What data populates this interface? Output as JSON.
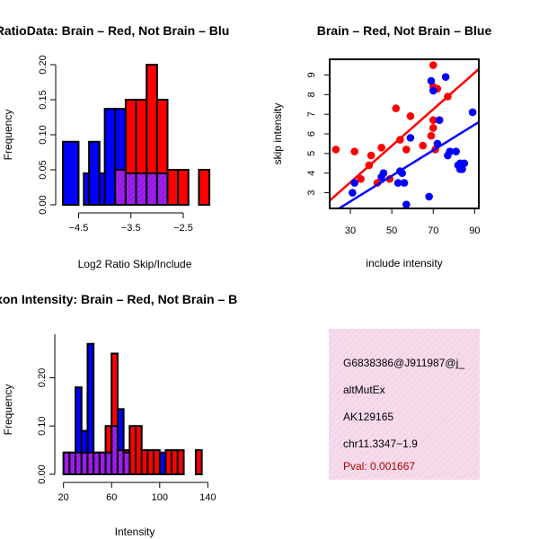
{
  "colors": {
    "red": "#ff0000",
    "blue": "#0000ff",
    "purple": "#a020f0",
    "pink_bg": "#f4d7ea"
  },
  "chart_data": [
    {
      "type": "bar",
      "title": "RatioData: Brain – Red, Not Brain – Blu",
      "xlabel": "Log2 Ratio Skip/Include",
      "ylabel": "Frequency",
      "xlim": [
        -4.8,
        -1.95
      ],
      "ylim": [
        0,
        0.2
      ],
      "xticks": [
        {
          "v": -4.5,
          "label": "−4.5"
        },
        {
          "v": -3.5,
          "label": "−3.5"
        },
        {
          "v": -2.5,
          "label": "−2.5"
        }
      ],
      "yticks": [
        {
          "v": 0,
          "label": "0.00"
        },
        {
          "v": 0.05,
          "label": "0.05"
        },
        {
          "v": 0.1,
          "label": "0.10"
        },
        {
          "v": 0.15,
          "label": "0.15"
        },
        {
          "v": 0.2,
          "label": "0.20"
        }
      ],
      "series": [
        {
          "name": "Not Brain",
          "color": "blue",
          "bins": [
            [
              -4.8,
              -4.5,
              0.09
            ],
            [
              -4.5,
              -4.4,
              0
            ],
            [
              -4.4,
              -4.2,
              0.045
            ],
            [
              -4.3,
              -4.1,
              0.09
            ],
            [
              -4.1,
              -3.9,
              0.045
            ],
            [
              -4.0,
              -3.8,
              0.137
            ],
            [
              -3.8,
              -3.6,
              0.137
            ],
            [
              -3.6,
              -3.4,
              0.045
            ],
            [
              -3.4,
              -3.2,
              0.09
            ],
            [
              -3.2,
              -3.0,
              0.09
            ],
            [
              -3.0,
              -2.8,
              0.045
            ]
          ]
        },
        {
          "name": "Brain",
          "color": "red",
          "bins": [
            [
              -3.8,
              -3.6,
              0.05
            ],
            [
              -3.6,
              -3.4,
              0.15
            ],
            [
              -3.4,
              -3.2,
              0.15
            ],
            [
              -3.2,
              -3.0,
              0.2
            ],
            [
              -3.0,
              -2.8,
              0.15
            ],
            [
              -2.8,
              -2.6,
              0.05
            ],
            [
              -2.6,
              -2.4,
              0.05
            ],
            [
              -2.2,
              -2.0,
              0.05
            ]
          ]
        },
        {
          "name": "Overlap",
          "color": "purple",
          "bins": [
            [
              -3.8,
              -3.6,
              0.05
            ],
            [
              -3.6,
              -3.4,
              0.045
            ],
            [
              -3.4,
              -3.2,
              0.045
            ],
            [
              -3.2,
              -3.0,
              0.045
            ],
            [
              -3.0,
              -2.8,
              0.045
            ]
          ]
        }
      ]
    },
    {
      "type": "scatter",
      "title": "Brain – Red, Not Brain – Blue",
      "xlabel": "include intensity",
      "ylabel": "skip intensity",
      "xlim": [
        20,
        92
      ],
      "ylim": [
        2.2,
        9.8
      ],
      "xticks": [
        {
          "v": 30,
          "label": "30"
        },
        {
          "v": 50,
          "label": "50"
        },
        {
          "v": 70,
          "label": "70"
        },
        {
          "v": 90,
          "label": "90"
        }
      ],
      "yticks": [
        {
          "v": 3,
          "label": "3"
        },
        {
          "v": 4,
          "label": "4"
        },
        {
          "v": 5,
          "label": "5"
        },
        {
          "v": 6,
          "label": "6"
        },
        {
          "v": 7,
          "label": "7"
        },
        {
          "v": 8,
          "label": "8"
        },
        {
          "v": 9,
          "label": "9"
        }
      ],
      "series": [
        {
          "name": "Brain",
          "color": "red",
          "points": [
            [
              23,
              5.2
            ],
            [
              32,
              5.1
            ],
            [
              35,
              3.7
            ],
            [
              39,
              4.4
            ],
            [
              40,
              4.9
            ],
            [
              43,
              3.5
            ],
            [
              45,
              5.3
            ],
            [
              49,
              3.7
            ],
            [
              52,
              7.3
            ],
            [
              54,
              5.7
            ],
            [
              57,
              5.2
            ],
            [
              59,
              6.9
            ],
            [
              65,
              5.4
            ],
            [
              69,
              5.9
            ],
            [
              70,
              6.3
            ],
            [
              70,
              6.7
            ],
            [
              70,
              8.4
            ],
            [
              70,
              9.5
            ],
            [
              71,
              5.2
            ],
            [
              72,
              8.3
            ],
            [
              77,
              7.9
            ]
          ],
          "fit": [
            [
              20,
              2.6
            ],
            [
              92,
              9.3
            ]
          ]
        },
        {
          "name": "Not Brain",
          "color": "blue",
          "points": [
            [
              31,
              3.0
            ],
            [
              32,
              3.5
            ],
            [
              45,
              3.8
            ],
            [
              46,
              4.0
            ],
            [
              53,
              3.5
            ],
            [
              54,
              4.1
            ],
            [
              55,
              4.0
            ],
            [
              56,
              3.5
            ],
            [
              57,
              2.4
            ],
            [
              59,
              5.8
            ],
            [
              68,
              2.8
            ],
            [
              69,
              8.7
            ],
            [
              70,
              8.2
            ],
            [
              72,
              5.5
            ],
            [
              73,
              6.7
            ],
            [
              76,
              8.9
            ],
            [
              77,
              4.9
            ],
            [
              78,
              5.1
            ],
            [
              81,
              5.1
            ],
            [
              82,
              4.4
            ],
            [
              83,
              4.5
            ],
            [
              83,
              4.2
            ],
            [
              84,
              4.2
            ],
            [
              85,
              4.5
            ],
            [
              89,
              7.1
            ]
          ],
          "fit": [
            [
              23,
              2.1
            ],
            [
              92,
              6.6
            ]
          ]
        }
      ]
    },
    {
      "type": "bar",
      "title": "Exon Intensity: Brain – Red, Not Brain – B",
      "xlabel": "Intensity",
      "ylabel": "Frequency",
      "xlim": [
        18,
        142
      ],
      "ylim": [
        0,
        0.29
      ],
      "xticks": [
        {
          "v": 20,
          "label": "20"
        },
        {
          "v": 60,
          "label": "60"
        },
        {
          "v": 100,
          "label": "100"
        },
        {
          "v": 140,
          "label": "140"
        }
      ],
      "yticks": [
        {
          "v": 0,
          "label": "0.00"
        },
        {
          "v": 0.1,
          "label": "0.10"
        },
        {
          "v": 0.2,
          "label": "0.20"
        }
      ],
      "series": [
        {
          "name": "Not Brain",
          "color": "blue",
          "bins": [
            [
              20,
              25,
              0.045
            ],
            [
              25,
              30,
              0.045
            ],
            [
              30,
              35,
              0.18
            ],
            [
              35,
              40,
              0.09
            ],
            [
              40,
              45,
              0.27
            ],
            [
              45,
              50,
              0.045
            ],
            [
              50,
              55,
              0.045
            ],
            [
              55,
              60,
              0.045
            ],
            [
              60,
              65,
              0.045
            ],
            [
              65,
              70,
              0.135
            ],
            [
              70,
              75,
              0.045
            ],
            [
              100,
              105,
              0.045
            ],
            [
              105,
              110,
              0
            ]
          ]
        },
        {
          "name": "Brain",
          "color": "red",
          "bins": [
            [
              55,
              60,
              0.1
            ],
            [
              60,
              65,
              0.25
            ],
            [
              65,
              70,
              0.05
            ],
            [
              70,
              75,
              0.05
            ],
            [
              75,
              80,
              0.1
            ],
            [
              80,
              85,
              0.1
            ],
            [
              85,
              90,
              0.05
            ],
            [
              90,
              95,
              0.05
            ],
            [
              95,
              100,
              0.05
            ],
            [
              105,
              110,
              0.05
            ],
            [
              110,
              115,
              0.05
            ],
            [
              115,
              120,
              0.05
            ],
            [
              130,
              135,
              0.05
            ]
          ]
        },
        {
          "name": "Overlap",
          "color": "purple",
          "bins": [
            [
              20,
              25,
              0.045
            ],
            [
              25,
              30,
              0.045
            ],
            [
              30,
              35,
              0.045
            ],
            [
              35,
              40,
              0.045
            ],
            [
              40,
              45,
              0.045
            ],
            [
              45,
              50,
              0.045
            ],
            [
              50,
              55,
              0.045
            ],
            [
              55,
              60,
              0.045
            ],
            [
              60,
              65,
              0.1
            ],
            [
              65,
              70,
              0.05
            ],
            [
              70,
              75,
              0.045
            ]
          ]
        }
      ]
    }
  ],
  "info_panel": {
    "line1": "G6838386@J911987@j_",
    "line2": "altMutEx",
    "line3": "AK129165",
    "line4": "chr11.3347−1.9",
    "pval": "Pval: 0.001667"
  }
}
